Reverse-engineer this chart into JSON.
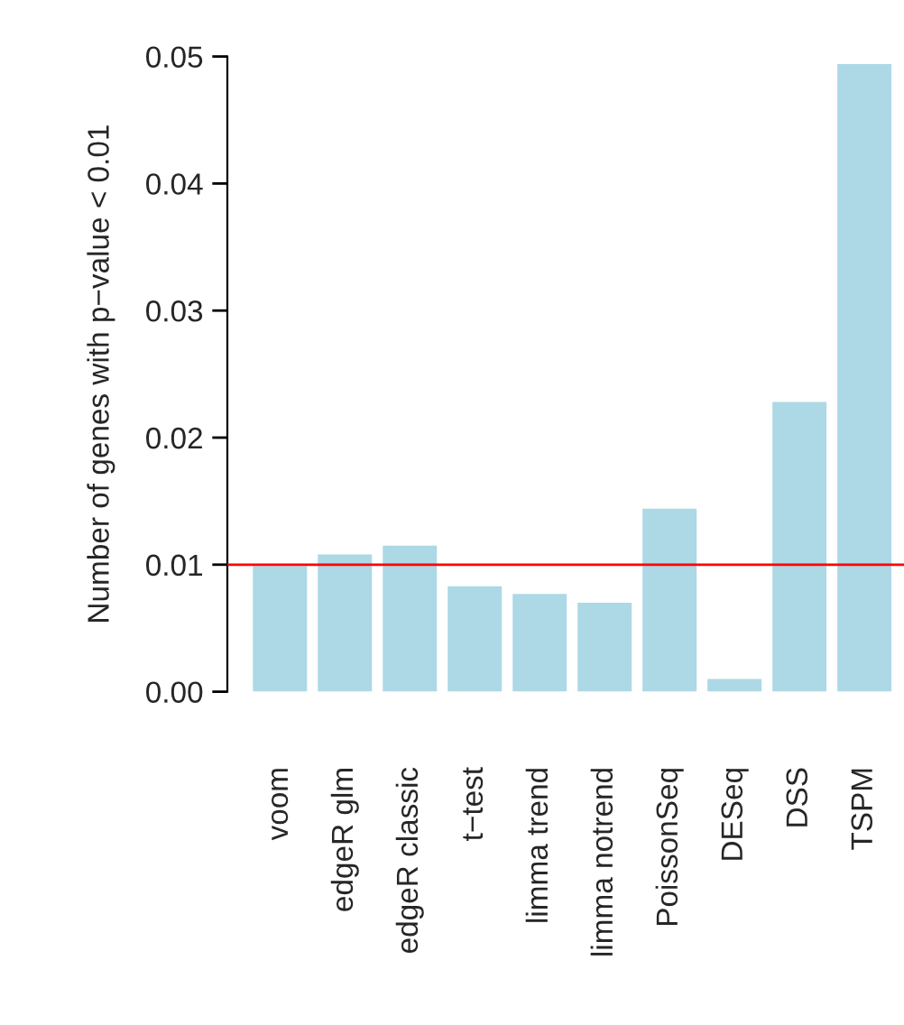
{
  "chart_data": {
    "type": "bar",
    "ylabel": "Number of genes with p−value < 0.01",
    "categories": [
      "voom",
      "edgeR glm",
      "edgeR classic",
      "t−test",
      "limma trend",
      "limma notrend",
      "PoissonSeq",
      "DESeq",
      "DSS",
      "TSPM"
    ],
    "values": [
      0.0099,
      0.0108,
      0.0115,
      0.0083,
      0.0077,
      0.007,
      0.0144,
      0.001,
      0.0228,
      0.0494
    ],
    "color": "#add8e6",
    "ylim": [
      0,
      0.05
    ],
    "yticks": [
      {
        "value": 0,
        "label": "0.00"
      },
      0.01,
      0.02,
      0.03,
      0.04,
      0.05
    ],
    "ref_lines": [
      {
        "axis": "y",
        "value": 0.01,
        "color": "#ff0000"
      }
    ],
    "grid": false,
    "legend": false
  }
}
